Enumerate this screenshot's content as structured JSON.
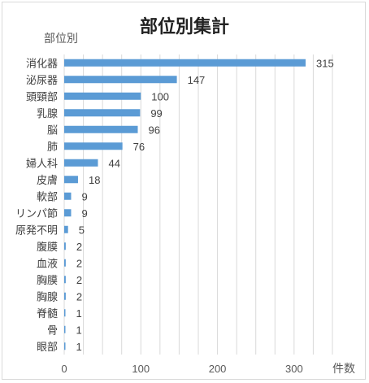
{
  "chart_data": {
    "type": "bar",
    "orientation": "horizontal",
    "title": "部位別集計",
    "ylabel": "部位別",
    "xlabel": "件数",
    "categories": [
      "消化器",
      "泌尿器",
      "頭頸部",
      "乳腺",
      "脳",
      "肺",
      "婦人科",
      "皮膚",
      "軟部",
      "リンパ節",
      "原発不明",
      "腹膜",
      "血液",
      "胸膜",
      "胸腺",
      "脊髄",
      "骨",
      "眼部"
    ],
    "values": [
      315,
      147,
      100,
      99,
      96,
      76,
      44,
      18,
      9,
      9,
      5,
      2,
      2,
      2,
      2,
      1,
      1,
      1
    ],
    "xlim": [
      0,
      350
    ],
    "xticks": [
      "0",
      "100",
      "200",
      "300"
    ],
    "grid": true,
    "bar_color": "#5b9bd5",
    "grid_color": "#d9d9d9"
  }
}
